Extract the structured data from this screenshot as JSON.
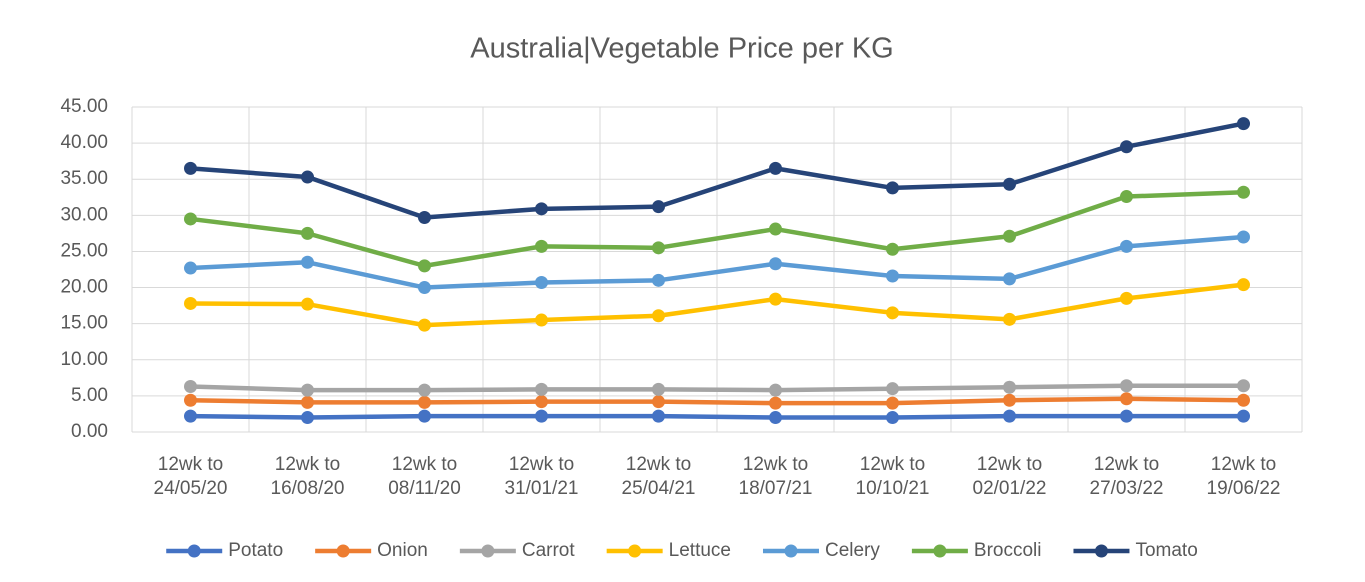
{
  "chart_data": {
    "type": "line",
    "title": "Australia|Vegetable Price per KG",
    "categories": [
      "12wk to 24/05/20",
      "12wk to 16/08/20",
      "12wk to 08/11/20",
      "12wk to 31/01/21",
      "12wk to 25/04/21",
      "12wk to 18/07/21",
      "12wk to 10/10/21",
      "12wk to 02/01/22",
      "12wk to 27/03/22",
      "12wk to 19/06/22"
    ],
    "series": [
      {
        "name": "Potato",
        "color": "#4472c4",
        "values": [
          2.2,
          2.0,
          2.2,
          2.2,
          2.2,
          2.0,
          2.0,
          2.2,
          2.2,
          2.2
        ]
      },
      {
        "name": "Onion",
        "color": "#ed7d31",
        "values": [
          4.4,
          4.1,
          4.1,
          4.2,
          4.2,
          4.0,
          4.0,
          4.4,
          4.6,
          4.4
        ]
      },
      {
        "name": "Carrot",
        "color": "#a5a5a5",
        "values": [
          6.3,
          5.8,
          5.8,
          5.9,
          5.9,
          5.8,
          6.0,
          6.2,
          6.4,
          6.4
        ]
      },
      {
        "name": "Lettuce",
        "color": "#ffc000",
        "values": [
          17.8,
          17.7,
          14.8,
          15.5,
          16.1,
          18.4,
          16.5,
          15.6,
          18.5,
          20.4
        ]
      },
      {
        "name": "Celery",
        "color": "#5b9bd5",
        "values": [
          22.7,
          23.5,
          20.0,
          20.7,
          21.0,
          23.3,
          21.6,
          21.2,
          25.7,
          27.0
        ]
      },
      {
        "name": "Broccoli",
        "color": "#70ad47",
        "values": [
          29.5,
          27.5,
          23.0,
          25.7,
          25.5,
          28.1,
          25.3,
          27.1,
          32.6,
          33.2
        ]
      },
      {
        "name": "Tomato",
        "color": "#264478",
        "values": [
          36.5,
          35.3,
          29.7,
          30.9,
          31.2,
          36.5,
          33.8,
          34.3,
          39.5,
          42.7
        ]
      }
    ],
    "ylim": [
      0,
      45
    ],
    "yticks": [
      {
        "value": 0,
        "label": "0.00"
      },
      {
        "value": 5,
        "label": "5.00"
      },
      {
        "value": 10,
        "label": "10.00"
      },
      {
        "value": 15,
        "label": "15.00"
      },
      {
        "value": 20,
        "label": "20.00"
      },
      {
        "value": 25,
        "label": "25.00"
      },
      {
        "value": 30,
        "label": "30.00"
      },
      {
        "value": 35,
        "label": "35.00"
      },
      {
        "value": 40,
        "label": "40.00"
      },
      {
        "value": 45,
        "label": "45.00"
      }
    ],
    "grid": true,
    "legend": "bottom"
  }
}
